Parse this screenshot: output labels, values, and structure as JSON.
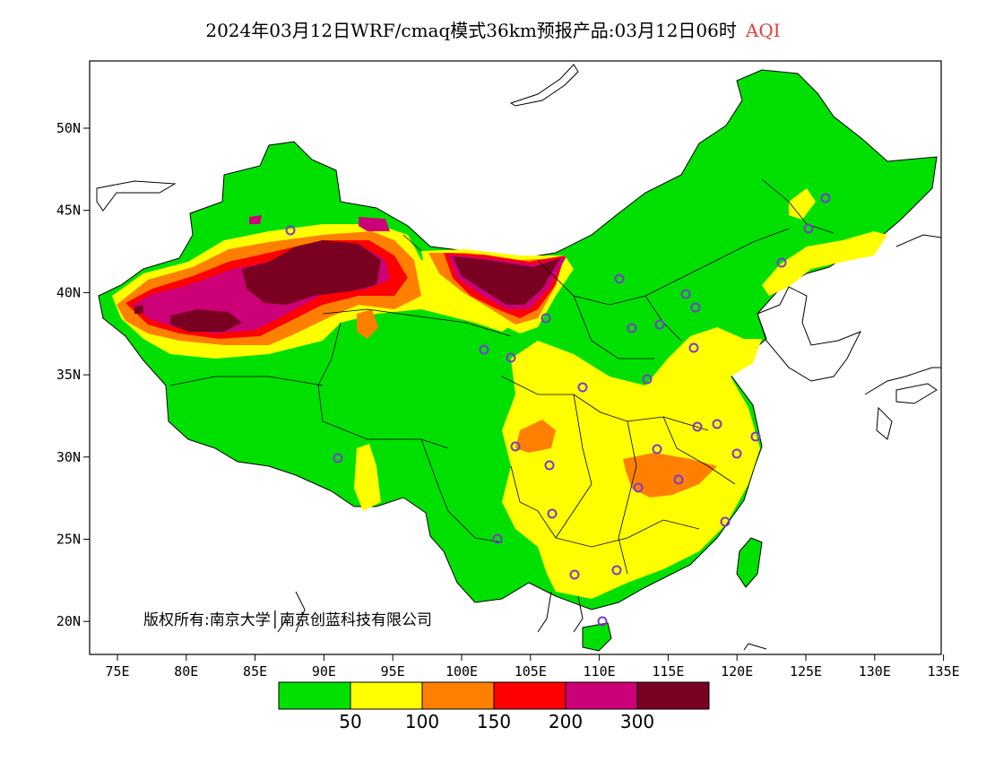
{
  "title": {
    "main": "2024年03月12日WRF/cmaq模式36km预报产品:03月12日06时",
    "variable": "AQI"
  },
  "axes": {
    "x_ticks": [
      "75E",
      "80E",
      "85E",
      "90E",
      "95E",
      "100E",
      "105E",
      "110E",
      "115E",
      "120E",
      "125E",
      "130E",
      "135E"
    ],
    "y_ticks": [
      "50N",
      "45N",
      "40N",
      "35N",
      "30N",
      "25N",
      "20N"
    ]
  },
  "copyright": "版权所有:南京大学│南京创蓝科技有限公司",
  "legend": {
    "colors": [
      "#00e000",
      "#ffff00",
      "#ff8000",
      "#ff0000",
      "#cc0077",
      "#7a0022"
    ],
    "labels": [
      "50",
      "100",
      "150",
      "200",
      "300"
    ]
  },
  "colors": {
    "ocean": "#ffffff",
    "border": "#000000",
    "station_marker": "#7a3ccc"
  }
}
